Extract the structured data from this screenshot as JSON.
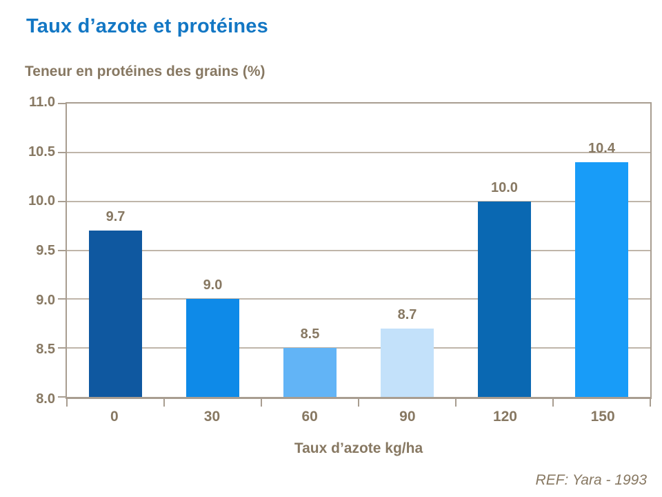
{
  "page": {
    "title": "Taux d’azote et protéines",
    "footer_ref": "REF: Yara - 1993"
  },
  "chart_data": {
    "type": "bar",
    "title": "Teneur en protéines des grains (%)",
    "xlabel": "Taux d’azote kg/ha",
    "ylabel": "Teneur en protéines des grains (%)",
    "categories": [
      "0",
      "30",
      "60",
      "90",
      "120",
      "150"
    ],
    "values": [
      9.7,
      9.0,
      8.5,
      8.7,
      10.0,
      10.4
    ],
    "value_labels": [
      "9.7",
      "9.0",
      "8.5",
      "8.7",
      "10.0",
      "10.4"
    ],
    "bar_colors": [
      "#0F58A0",
      "#0E8AE8",
      "#62B4F6",
      "#C3E1FA",
      "#0A68B2",
      "#189CF8"
    ],
    "ylim": [
      8.0,
      11.0
    ],
    "ytick_step": 0.5,
    "ytick_labels": [
      "11.0",
      "10.5",
      "10.0",
      "9.5",
      "9.0",
      "8.5",
      "8.0"
    ],
    "grid": "horizontal",
    "legend": "none",
    "colors": {
      "title_text": "#1377C4",
      "axis_text": "#877862",
      "gridline": "#BFB5A9",
      "axis_line": "#A89D90"
    }
  }
}
